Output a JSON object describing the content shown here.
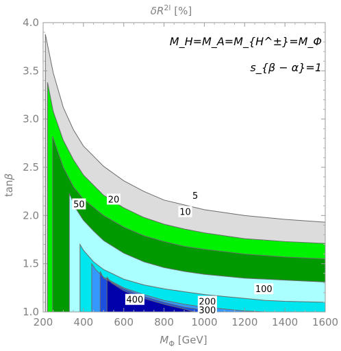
{
  "chart_data": {
    "type": "contour",
    "title": "δR^{2l} [%]",
    "title_base": "δR",
    "title_sup": "2l",
    "title_unit": "[%]",
    "xlabel": "M_Φ [GeV]",
    "xlabel_main": "M",
    "xlabel_sub": "Φ",
    "xlabel_unit": "[GeV]",
    "ylabel": "tanβ",
    "ylabel_main": "tan",
    "ylabel_greek": "β",
    "xlim": [
      200,
      1600
    ],
    "ylim": [
      1.0,
      4.0
    ],
    "xticks": [
      "200",
      "400",
      "600",
      "800",
      "1000",
      "1200",
      "1400",
      "1600"
    ],
    "yticks": [
      "1.0",
      "1.5",
      "2.0",
      "2.5",
      "3.0",
      "3.5",
      "4.0"
    ],
    "annotations": [
      "M_H=M_A=M_{H^±}=M_Φ",
      "s_{β − α}=1"
    ],
    "annotation_1_text": "M_H=M_A=M_{H^±}=M_Φ",
    "annotation_2_text": "s_{β − α}=1",
    "levels": [
      5,
      10,
      20,
      50,
      100,
      200,
      300,
      400
    ],
    "level_colors": {
      "5": "#dcdcdc",
      "10": "#00f200",
      "20": "#009900",
      "50": "#aaffff",
      "100": "#00e6ee",
      "200": "#3399ff",
      "300": "#1c4fe0",
      "400": "#0000aa"
    },
    "contours": [
      {
        "level": 5,
        "x": [
          211,
          250,
          300,
          350,
          400,
          500,
          600,
          700,
          800,
          900,
          1000,
          1200,
          1400,
          1600
        ],
        "y": [
          3.88,
          3.48,
          3.12,
          2.89,
          2.72,
          2.51,
          2.36,
          2.25,
          2.16,
          2.11,
          2.06,
          2.0,
          1.96,
          1.93
        ]
      },
      {
        "level": 10,
        "x": [
          222,
          250,
          300,
          350,
          400,
          500,
          600,
          700,
          800,
          900,
          1000,
          1200,
          1400,
          1600
        ],
        "y": [
          3.38,
          3.08,
          2.78,
          2.58,
          2.42,
          2.21,
          2.08,
          1.98,
          1.91,
          1.86,
          1.82,
          1.76,
          1.73,
          1.71
        ]
      },
      {
        "level": 20,
        "x": [
          247,
          280,
          300,
          350,
          400,
          500,
          600,
          700,
          800,
          900,
          1000,
          1200,
          1400,
          1600
        ],
        "y": [
          2.82,
          2.62,
          2.5,
          2.3,
          2.17,
          2.0,
          1.88,
          1.79,
          1.73,
          1.68,
          1.65,
          1.6,
          1.57,
          1.55
        ]
      },
      {
        "level": 50,
        "x": [
          330,
          360,
          400,
          450,
          500,
          600,
          700,
          800,
          900,
          1000,
          1200,
          1400,
          1600
        ],
        "y": [
          2.23,
          2.08,
          1.95,
          1.84,
          1.74,
          1.61,
          1.52,
          1.46,
          1.42,
          1.39,
          1.35,
          1.33,
          1.31
        ]
      },
      {
        "level": 100,
        "x": [
          383,
          400,
          450,
          500,
          600,
          700,
          800,
          900,
          1000,
          1100,
          1200,
          1300,
          1400,
          1600
        ],
        "y": [
          1.7,
          1.64,
          1.52,
          1.44,
          1.34,
          1.28,
          1.24,
          1.21,
          1.18,
          1.16,
          1.14,
          1.12,
          1.11,
          1.1
        ]
      },
      {
        "level": 200,
        "x": [
          441,
          460,
          500,
          600,
          700,
          800,
          900,
          1000,
          1100,
          1200,
          1300
        ],
        "y": [
          1.5,
          1.44,
          1.36,
          1.25,
          1.18,
          1.12,
          1.08,
          1.05,
          1.03,
          1.01,
          1.0
        ]
      },
      {
        "level": 300,
        "x": [
          483,
          500,
          600,
          700,
          800,
          900,
          1000,
          1050
        ],
        "y": [
          1.42,
          1.35,
          1.24,
          1.16,
          1.1,
          1.05,
          1.02,
          1.0
        ]
      },
      {
        "level": 400,
        "x": [
          517,
          540,
          600,
          700,
          800,
          900,
          950
        ],
        "y": [
          1.36,
          1.3,
          1.22,
          1.14,
          1.08,
          1.03,
          1.0
        ]
      }
    ],
    "contour_labels": [
      {
        "text": "5",
        "x": 955,
        "y": 2.21
      },
      {
        "text": "10",
        "x": 905,
        "y": 2.04
      },
      {
        "text": "20",
        "x": 550,
        "y": 2.17
      },
      {
        "text": "50",
        "x": 378,
        "y": 2.12
      },
      {
        "text": "100",
        "x": 1295,
        "y": 1.24
      },
      {
        "text": "200",
        "x": 1015,
        "y": 1.11
      },
      {
        "text": "300",
        "x": 1015,
        "y": 1.02
      },
      {
        "text": "400",
        "x": 655,
        "y": 1.13
      }
    ],
    "grid": false,
    "legend": "none"
  }
}
